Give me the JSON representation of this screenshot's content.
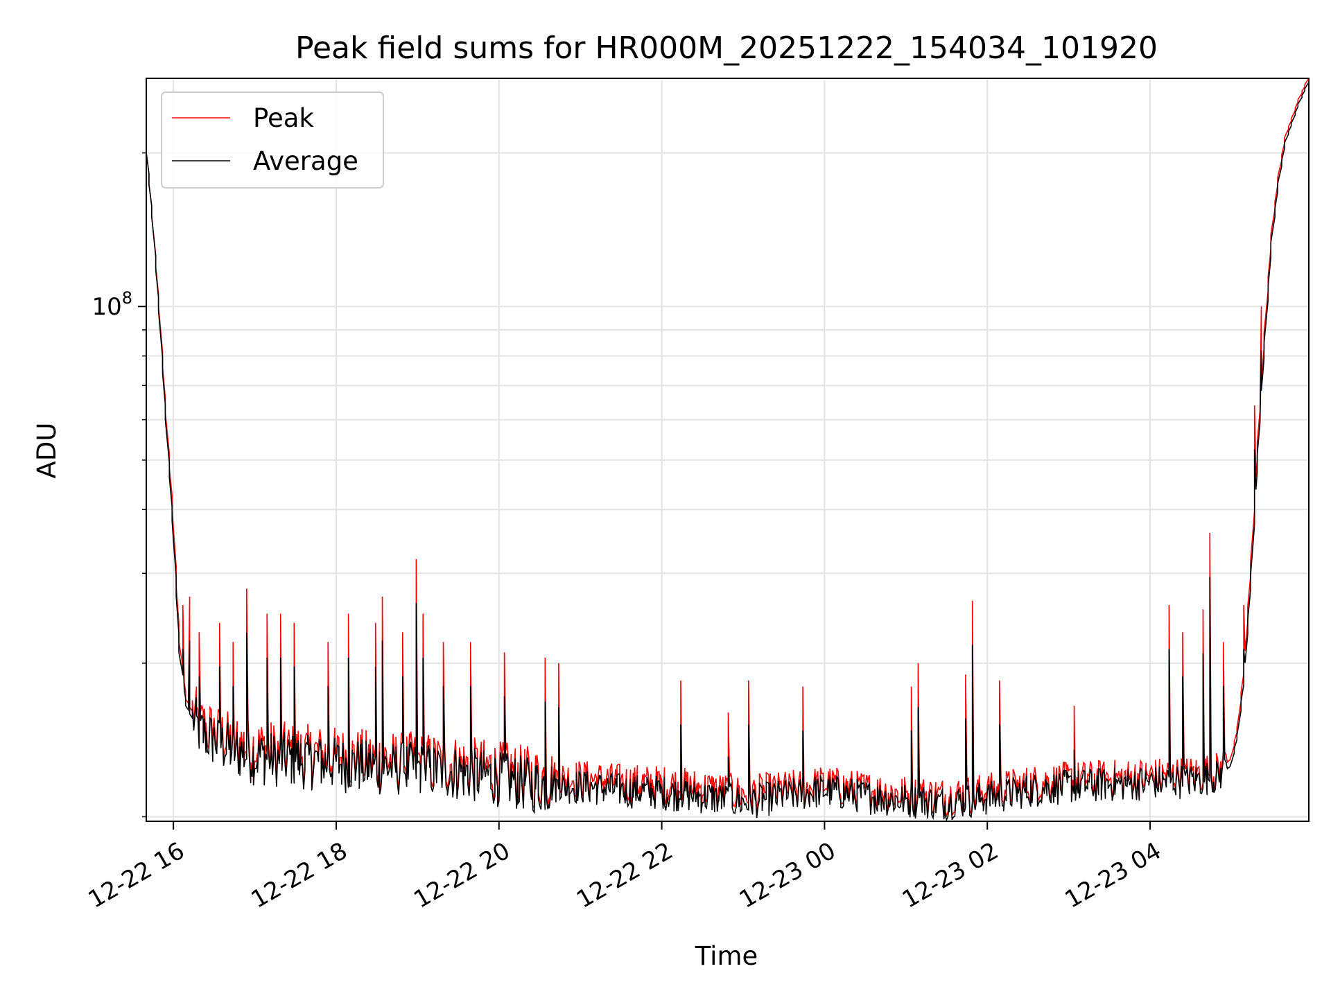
{
  "chart_data": {
    "type": "line",
    "title": "Peak field sums for HR000M_20251222_154034_101920",
    "xlabel": "Time",
    "ylabel": "ADU",
    "yscale": "log",
    "xlim": [
      "2025-12-22 15:40",
      "2025-12-23 05:57"
    ],
    "ylim": [
      9800000,
      280000000
    ],
    "x_ticks": [
      {
        "value": "2025-12-22 16:00",
        "label": "12-22 16"
      },
      {
        "value": "2025-12-22 18:00",
        "label": "12-22 18"
      },
      {
        "value": "2025-12-22 20:00",
        "label": "12-22 20"
      },
      {
        "value": "2025-12-22 22:00",
        "label": "12-22 22"
      },
      {
        "value": "2025-12-23 00:00",
        "label": "12-23 00"
      },
      {
        "value": "2025-12-23 02:00",
        "label": "12-23 02"
      },
      {
        "value": "2025-12-23 04:00",
        "label": "12-23 04"
      }
    ],
    "y_ticks": [
      {
        "value": 100000000,
        "label_base": "10",
        "label_exp": "8"
      }
    ],
    "y_minor_ticks": [
      10000000,
      20000000,
      30000000,
      40000000,
      50000000,
      60000000,
      70000000,
      80000000,
      90000000,
      200000000
    ],
    "grid": true,
    "legend": {
      "placement": "top-left",
      "entries": [
        "Peak",
        "Average"
      ]
    },
    "series": [
      {
        "name": "Peak",
        "color": "#ff0000",
        "points": [
          [
            "2025-12-22 15:40",
            210000000
          ],
          [
            "2025-12-22 15:45",
            150000000
          ],
          [
            "2025-12-22 15:50",
            100000000
          ],
          [
            "2025-12-22 15:55",
            62000000
          ],
          [
            "2025-12-22 16:00",
            40000000
          ],
          [
            "2025-12-22 16:05",
            22000000
          ],
          [
            "2025-12-22 16:10",
            17000000
          ],
          [
            "2025-12-22 16:20",
            15000000
          ],
          [
            "2025-12-22 16:40",
            14000000
          ],
          [
            "2025-12-22 17:00",
            13500000
          ],
          [
            "2025-12-22 17:30",
            13200000
          ],
          [
            "2025-12-22 18:00",
            13000000
          ],
          [
            "2025-12-22 18:30",
            12800000
          ],
          [
            "2025-12-22 19:00",
            12700000
          ],
          [
            "2025-12-22 19:30",
            12500000
          ],
          [
            "2025-12-22 20:00",
            12200000
          ],
          [
            "2025-12-22 20:30",
            11800000
          ],
          [
            "2025-12-22 21:00",
            11800000
          ],
          [
            "2025-12-22 21:30",
            11600000
          ],
          [
            "2025-12-22 22:00",
            11500000
          ],
          [
            "2025-12-22 22:30",
            11300000
          ],
          [
            "2025-12-22 23:00",
            11000000
          ],
          [
            "2025-12-22 23:30",
            11200000
          ],
          [
            "2025-12-23 00:00",
            11500000
          ],
          [
            "2025-12-23 00:30",
            11200000
          ],
          [
            "2025-12-23 01:00",
            11000000
          ],
          [
            "2025-12-23 01:30",
            10900000
          ],
          [
            "2025-12-23 02:00",
            11100000
          ],
          [
            "2025-12-23 02:30",
            11500000
          ],
          [
            "2025-12-23 03:00",
            11700000
          ],
          [
            "2025-12-23 03:30",
            11800000
          ],
          [
            "2025-12-23 04:00",
            11900000
          ],
          [
            "2025-12-23 04:30",
            12000000
          ],
          [
            "2025-12-23 04:50",
            12200000
          ],
          [
            "2025-12-23 05:00",
            13000000
          ],
          [
            "2025-12-23 05:05",
            15000000
          ],
          [
            "2025-12-23 05:10",
            20000000
          ],
          [
            "2025-12-23 05:15",
            32000000
          ],
          [
            "2025-12-23 05:20",
            55000000
          ],
          [
            "2025-12-23 05:25",
            90000000
          ],
          [
            "2025-12-23 05:30",
            140000000
          ],
          [
            "2025-12-23 05:35",
            180000000
          ],
          [
            "2025-12-23 05:40",
            215000000
          ],
          [
            "2025-12-23 05:50",
            255000000
          ],
          [
            "2025-12-23 05:57",
            280000000
          ]
        ],
        "spikes": [
          [
            "2025-12-22 16:08",
            26000000
          ],
          [
            "2025-12-22 16:12",
            27000000
          ],
          [
            "2025-12-22 16:20",
            23000000
          ],
          [
            "2025-12-22 16:35",
            24000000
          ],
          [
            "2025-12-22 16:45",
            22000000
          ],
          [
            "2025-12-22 16:55",
            28000000
          ],
          [
            "2025-12-22 17:10",
            25000000
          ],
          [
            "2025-12-22 17:20",
            25000000
          ],
          [
            "2025-12-22 17:30",
            24000000
          ],
          [
            "2025-12-22 17:55",
            22000000
          ],
          [
            "2025-12-22 18:10",
            25000000
          ],
          [
            "2025-12-22 18:30",
            24000000
          ],
          [
            "2025-12-22 18:35",
            27000000
          ],
          [
            "2025-12-22 18:50",
            23000000
          ],
          [
            "2025-12-22 19:00",
            32000000
          ],
          [
            "2025-12-22 19:05",
            25000000
          ],
          [
            "2025-12-22 19:20",
            22000000
          ],
          [
            "2025-12-22 19:40",
            22000000
          ],
          [
            "2025-12-22 20:05",
            21000000
          ],
          [
            "2025-12-22 20:35",
            20500000
          ],
          [
            "2025-12-22 20:45",
            20000000
          ],
          [
            "2025-12-22 22:15",
            18500000
          ],
          [
            "2025-12-22 22:50",
            16000000
          ],
          [
            "2025-12-22 23:05",
            18500000
          ],
          [
            "2025-12-22 23:45",
            18000000
          ],
          [
            "2025-12-23 01:05",
            18000000
          ],
          [
            "2025-12-23 01:10",
            20000000
          ],
          [
            "2025-12-23 01:45",
            19000000
          ],
          [
            "2025-12-23 01:50",
            26500000
          ],
          [
            "2025-12-23 02:10",
            18500000
          ],
          [
            "2025-12-23 03:05",
            16500000
          ],
          [
            "2025-12-23 04:15",
            26000000
          ],
          [
            "2025-12-23 04:25",
            23000000
          ],
          [
            "2025-12-23 04:40",
            25500000
          ],
          [
            "2025-12-23 04:45",
            36000000
          ],
          [
            "2025-12-23 04:55",
            22000000
          ],
          [
            "2025-12-23 05:10",
            26000000
          ],
          [
            "2025-12-23 05:18",
            64000000
          ],
          [
            "2025-12-23 05:22",
            100000000
          ]
        ]
      },
      {
        "name": "Average",
        "color": "#000000",
        "points": [
          [
            "2025-12-22 15:40",
            210000000
          ],
          [
            "2025-12-22 15:45",
            150000000
          ],
          [
            "2025-12-22 15:50",
            98000000
          ],
          [
            "2025-12-22 15:55",
            60000000
          ],
          [
            "2025-12-22 16:00",
            38000000
          ],
          [
            "2025-12-22 16:05",
            21000000
          ],
          [
            "2025-12-22 16:10",
            16500000
          ],
          [
            "2025-12-22 16:20",
            14500000
          ],
          [
            "2025-12-22 16:40",
            13500000
          ],
          [
            "2025-12-22 17:00",
            13000000
          ],
          [
            "2025-12-22 17:30",
            12800000
          ],
          [
            "2025-12-22 18:00",
            12600000
          ],
          [
            "2025-12-22 18:30",
            12400000
          ],
          [
            "2025-12-22 19:00",
            12300000
          ],
          [
            "2025-12-22 19:30",
            12100000
          ],
          [
            "2025-12-22 20:00",
            11800000
          ],
          [
            "2025-12-22 20:30",
            11400000
          ],
          [
            "2025-12-22 21:00",
            11400000
          ],
          [
            "2025-12-22 21:30",
            11200000
          ],
          [
            "2025-12-22 22:00",
            11100000
          ],
          [
            "2025-12-22 22:30",
            10900000
          ],
          [
            "2025-12-22 23:00",
            10600000
          ],
          [
            "2025-12-22 23:30",
            10900000
          ],
          [
            "2025-12-23 00:00",
            11200000
          ],
          [
            "2025-12-23 00:30",
            10900000
          ],
          [
            "2025-12-23 01:00",
            10700000
          ],
          [
            "2025-12-23 01:30",
            10600000
          ],
          [
            "2025-12-23 02:00",
            10800000
          ],
          [
            "2025-12-23 02:30",
            11200000
          ],
          [
            "2025-12-23 03:00",
            11400000
          ],
          [
            "2025-12-23 03:30",
            11500000
          ],
          [
            "2025-12-23 04:00",
            11600000
          ],
          [
            "2025-12-23 04:30",
            11700000
          ],
          [
            "2025-12-23 04:50",
            11900000
          ],
          [
            "2025-12-23 05:00",
            12600000
          ],
          [
            "2025-12-23 05:05",
            14500000
          ],
          [
            "2025-12-23 05:10",
            19000000
          ],
          [
            "2025-12-23 05:15",
            30000000
          ],
          [
            "2025-12-23 05:20",
            52000000
          ],
          [
            "2025-12-23 05:25",
            86000000
          ],
          [
            "2025-12-23 05:30",
            135000000
          ],
          [
            "2025-12-23 05:35",
            175000000
          ],
          [
            "2025-12-23 05:40",
            210000000
          ],
          [
            "2025-12-23 05:50",
            250000000
          ],
          [
            "2025-12-23 05:57",
            275000000
          ]
        ]
      }
    ]
  }
}
